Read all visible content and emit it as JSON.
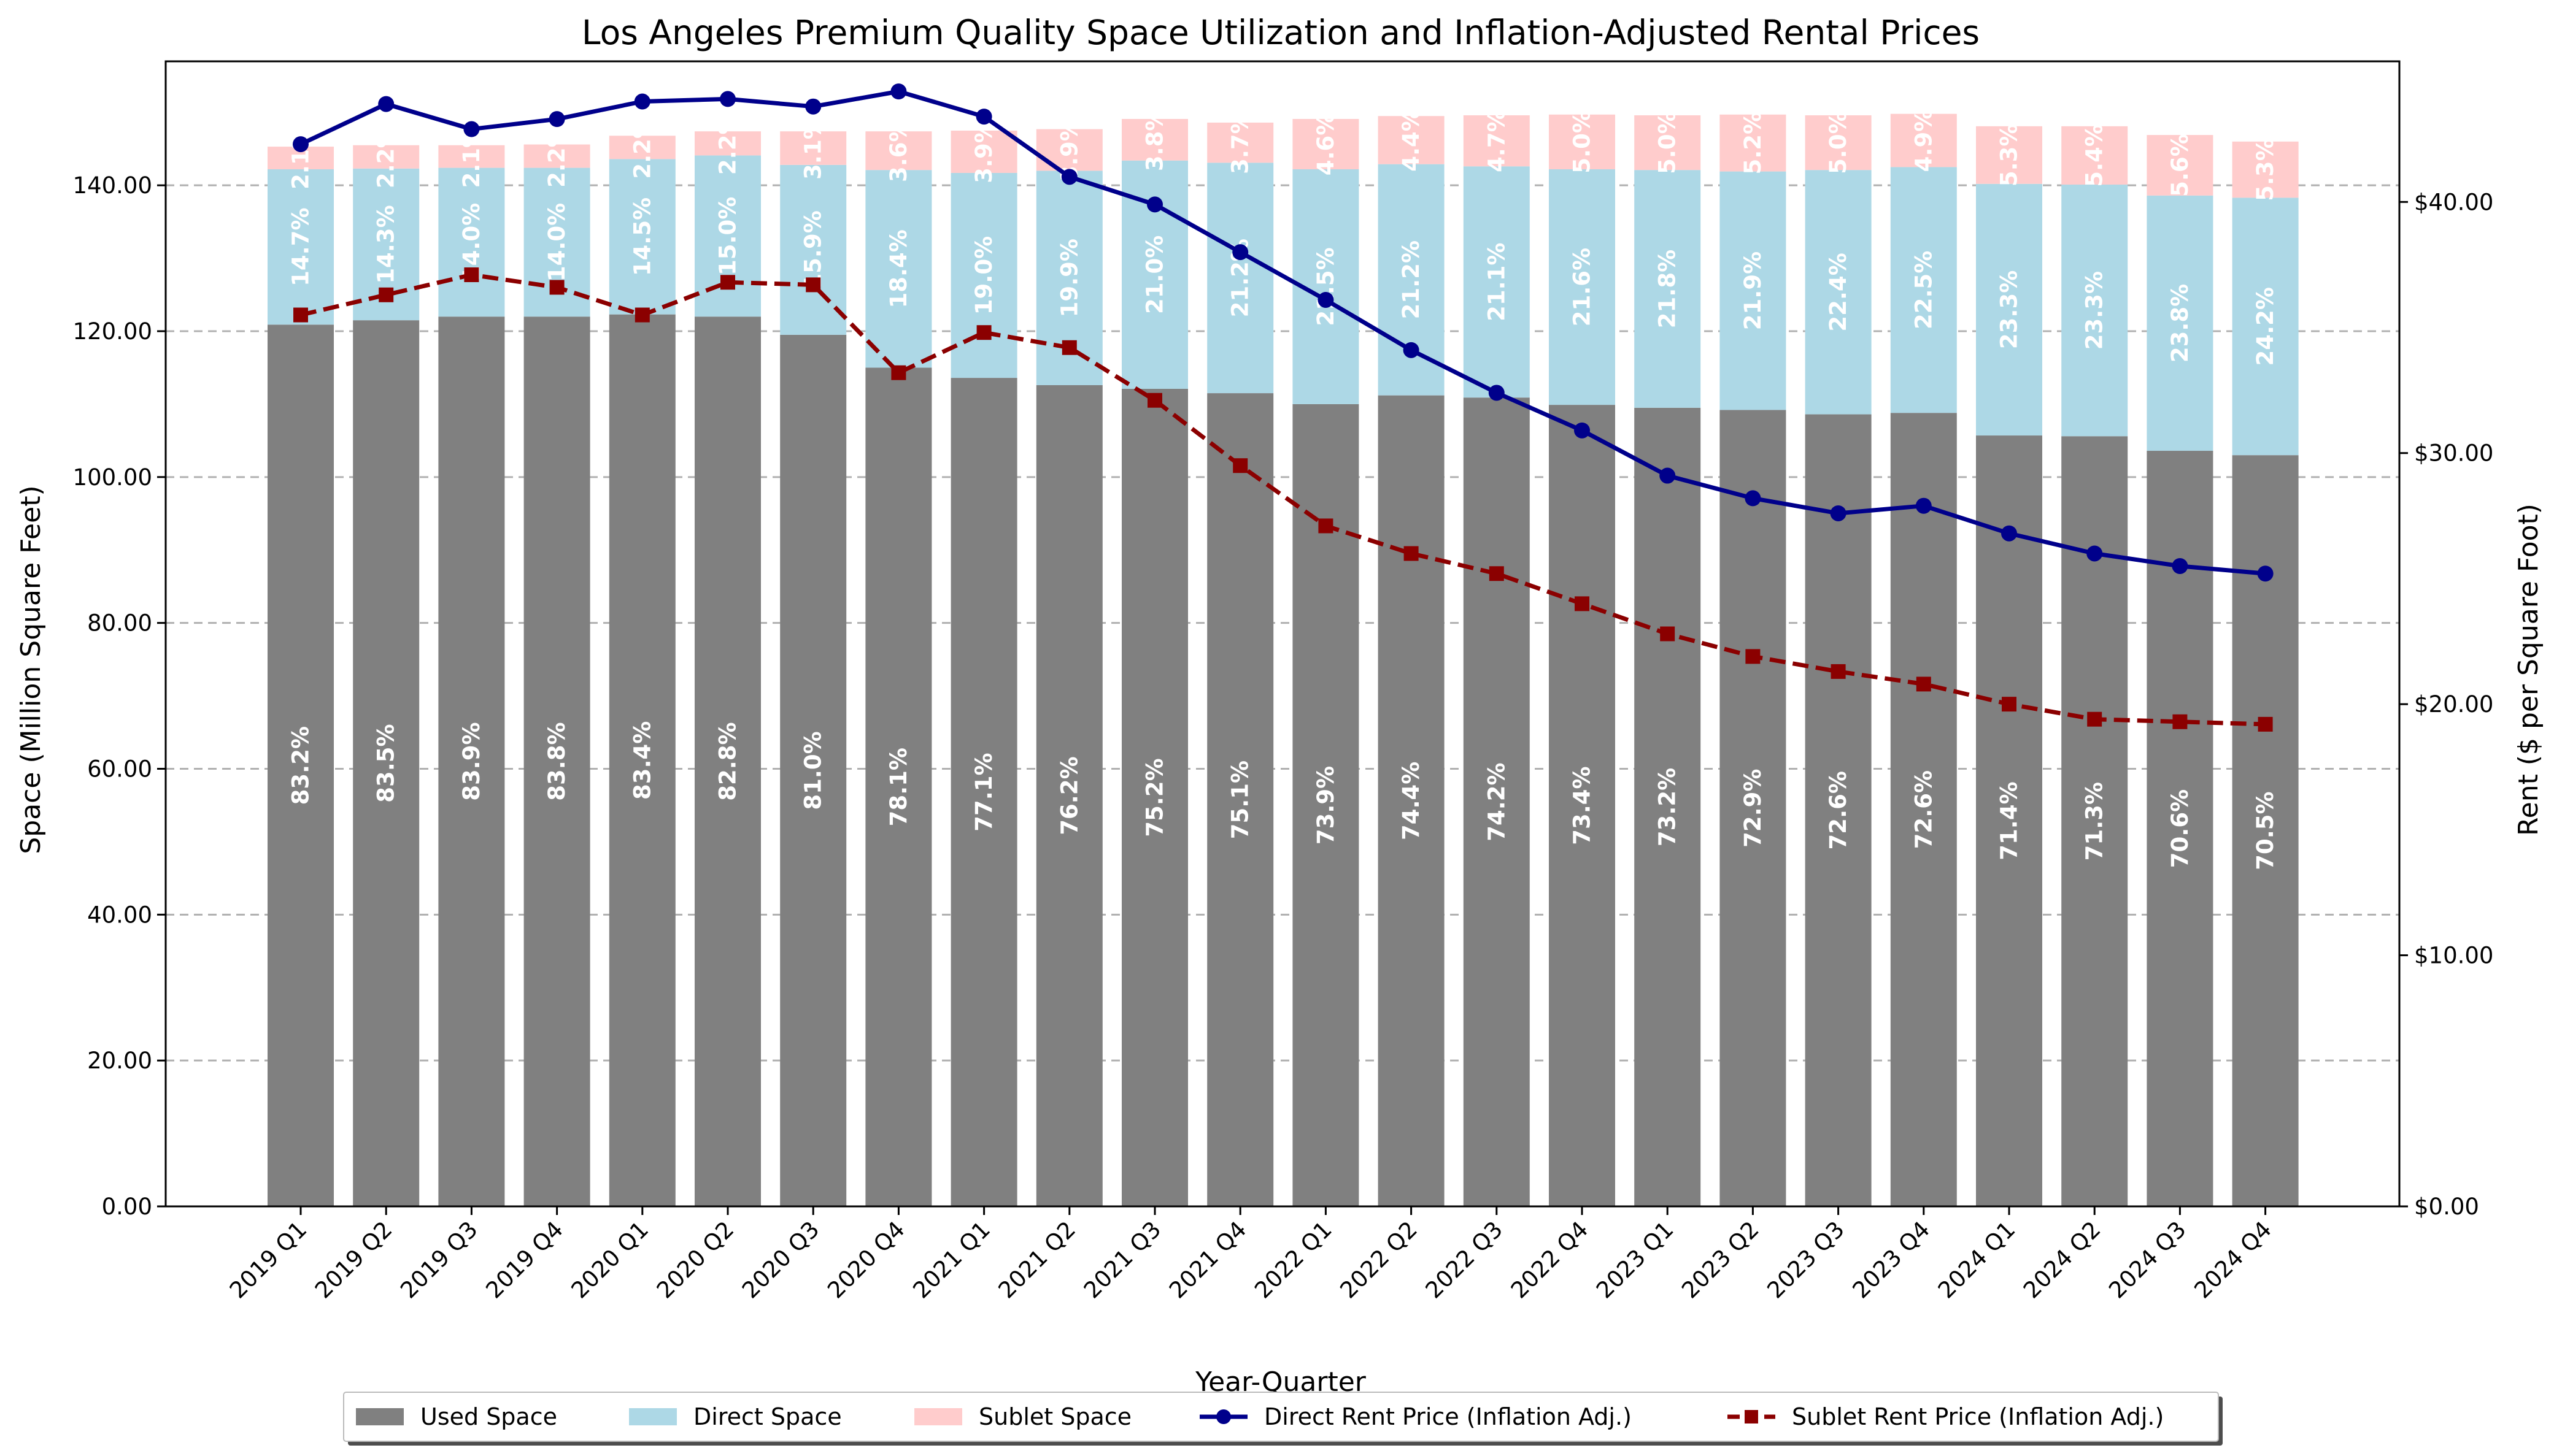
{
  "chart_data": {
    "type": "bar",
    "title": "Los Angeles Premium Quality Space Utilization and Inflation-Adjusted Rental Prices",
    "xlabel": "Year-Quarter",
    "ylabel_left": "Space (Million Square Feet)",
    "ylabel_right": "Rent ($ per Square Foot)",
    "ylim_left": [
      0,
      157
    ],
    "ylim_right": [
      0,
      45.6
    ],
    "yticks_left": [
      "0.00",
      "20.00",
      "40.00",
      "60.00",
      "80.00",
      "100.00",
      "120.00",
      "140.00"
    ],
    "yticks_right": [
      "$0.00",
      "$10.00",
      "$20.00",
      "$30.00",
      "$40.00"
    ],
    "grid": "horizontal dashed",
    "legend_position": "bottom-center",
    "categories": [
      "2019 Q1",
      "2019 Q2",
      "2019 Q3",
      "2019 Q4",
      "2020 Q1",
      "2020 Q2",
      "2020 Q3",
      "2020 Q4",
      "2021 Q1",
      "2021 Q2",
      "2021 Q3",
      "2021 Q4",
      "2022 Q1",
      "2022 Q2",
      "2022 Q3",
      "2022 Q4",
      "2023 Q1",
      "2023 Q2",
      "2023 Q3",
      "2023 Q4",
      "2024 Q1",
      "2024 Q2",
      "2024 Q3",
      "2024 Q4"
    ],
    "series": [
      {
        "name": "Used Space",
        "kind": "bar",
        "axis": "left",
        "color": "#808080",
        "values": [
          120.9,
          121.5,
          122.0,
          122.0,
          122.3,
          122.0,
          119.5,
          115.0,
          113.6,
          112.6,
          112.1,
          111.5,
          110.0,
          111.2,
          110.9,
          109.9,
          109.5,
          109.2,
          108.6,
          108.8,
          105.7,
          105.6,
          103.6,
          103.0
        ],
        "labels": [
          "83.2%",
          "83.5%",
          "83.9%",
          "83.8%",
          "83.4%",
          "82.8%",
          "81.0%",
          "78.1%",
          "77.1%",
          "76.2%",
          "75.2%",
          "75.1%",
          "73.9%",
          "74.4%",
          "74.2%",
          "73.4%",
          "73.2%",
          "72.9%",
          "72.6%",
          "72.6%",
          "71.4%",
          "71.3%",
          "70.6%",
          "70.5%"
        ]
      },
      {
        "name": "Direct Space",
        "kind": "bar",
        "axis": "left",
        "color": "#add8e6",
        "values": [
          21.3,
          20.8,
          20.4,
          20.4,
          21.3,
          22.1,
          23.3,
          27.1,
          28.1,
          29.4,
          31.3,
          31.6,
          32.2,
          31.7,
          31.7,
          32.3,
          32.6,
          32.7,
          33.5,
          33.7,
          34.5,
          34.5,
          35.0,
          35.3
        ],
        "labels": [
          "14.7%",
          "14.3%",
          "14.0%",
          "14.0%",
          "14.5%",
          "15.0%",
          "15.9%",
          "18.4%",
          "19.0%",
          "19.9%",
          "21.0%",
          "21.2%",
          "21.5%",
          "21.2%",
          "21.1%",
          "21.6%",
          "21.8%",
          "21.9%",
          "22.4%",
          "22.5%",
          "23.3%",
          "23.3%",
          "23.8%",
          "24.2%"
        ]
      },
      {
        "name": "Sublet Space",
        "kind": "bar",
        "axis": "left",
        "color": "#ffcccc",
        "values": [
          3.1,
          3.2,
          3.1,
          3.2,
          3.2,
          3.3,
          4.6,
          5.3,
          5.8,
          5.7,
          5.7,
          5.5,
          6.9,
          6.6,
          7.0,
          7.5,
          7.5,
          7.8,
          7.5,
          7.3,
          7.9,
          8.0,
          8.3,
          7.7
        ],
        "labels": [
          "2.1%",
          "2.2%",
          "2.1%",
          "2.2%",
          "2.2%",
          "2.2%",
          "3.1%",
          "3.6%",
          "3.9%",
          "3.9%",
          "3.8%",
          "3.7%",
          "4.6%",
          "4.4%",
          "4.7%",
          "5.0%",
          "5.0%",
          "5.2%",
          "5.0%",
          "4.9%",
          "5.3%",
          "5.4%",
          "5.6%",
          "5.3%"
        ]
      },
      {
        "name": "Direct Rent Price (Inflation Adj.)",
        "kind": "line",
        "axis": "right",
        "color": "#00008b",
        "marker": "circle",
        "linestyle": "solid",
        "values": [
          42.3,
          43.9,
          42.9,
          43.3,
          44.0,
          44.1,
          43.8,
          44.4,
          43.4,
          41.0,
          39.9,
          38.0,
          36.1,
          34.1,
          32.4,
          30.9,
          29.1,
          28.2,
          27.6,
          27.9,
          26.8,
          26.0,
          25.5,
          25.2
        ]
      },
      {
        "name": "Sublet Rent Price (Inflation Adj.)",
        "kind": "line",
        "axis": "right",
        "color": "#8b0000",
        "marker": "square",
        "linestyle": "dashed",
        "values": [
          35.5,
          36.3,
          37.1,
          36.6,
          35.5,
          36.8,
          36.7,
          33.2,
          34.8,
          34.2,
          32.1,
          29.5,
          27.1,
          26.0,
          25.2,
          24.0,
          22.8,
          21.9,
          21.3,
          20.8,
          20.0,
          19.4,
          19.3,
          19.2
        ]
      }
    ]
  }
}
